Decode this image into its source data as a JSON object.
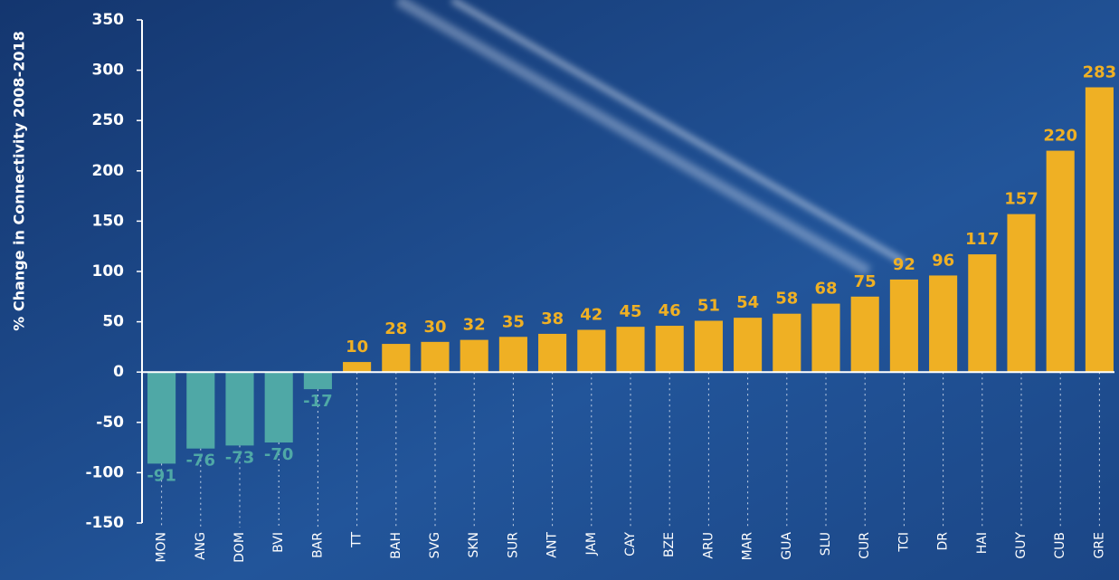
{
  "chart_data": {
    "type": "bar",
    "y_axis_label": "% Change in Connectivity 2008-2018",
    "categories": [
      "MON",
      "ANG",
      "DOM",
      "BVI",
      "BAR",
      "TT",
      "BAH",
      "SVG",
      "SKN",
      "SUR",
      "ANT",
      "JAM",
      "CAY",
      "BZE",
      "ARU",
      "MAR",
      "GUA",
      "SLU",
      "CUR",
      "TCI",
      "DR",
      "HAI",
      "GUY",
      "CUB",
      "GRE"
    ],
    "values": [
      -91,
      -76,
      -73,
      -70,
      -17,
      10,
      28,
      30,
      32,
      35,
      38,
      42,
      45,
      46,
      51,
      54,
      58,
      68,
      75,
      92,
      96,
      117,
      157,
      220,
      283
    ],
    "positive_color": "#efb024",
    "negative_color": "#4fa8a6",
    "ylim": [
      -150,
      350
    ],
    "yticks": [
      -150,
      -100,
      -50,
      0,
      50,
      100,
      150,
      200,
      250,
      300,
      350
    ]
  }
}
